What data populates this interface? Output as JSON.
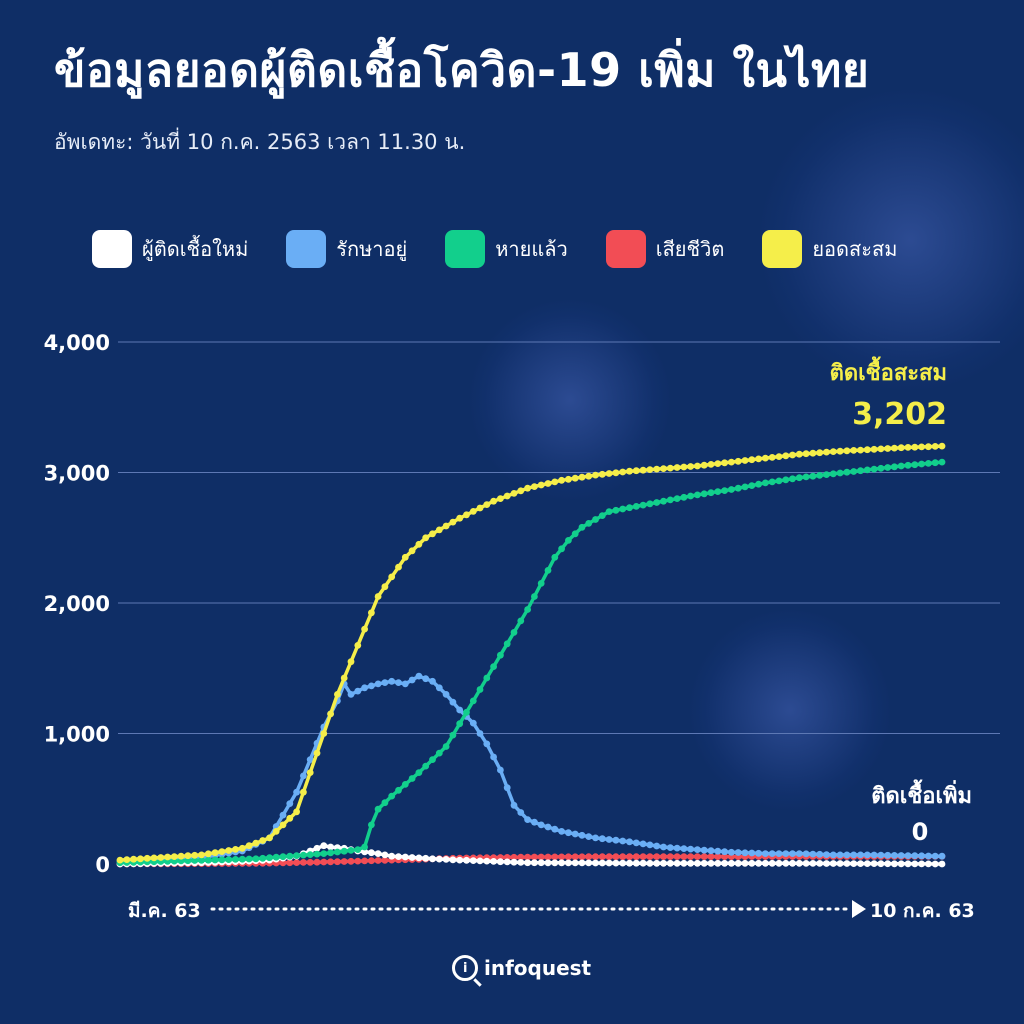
{
  "title": "ข้อมูลยอดผู้ติดเชื้อโควิด-19 เพิ่ม ในไทย",
  "subtitle": "อัพเดทะ: วันที่ 10 ก.ค. 2563 เวลา 11.30 น.",
  "legend": [
    {
      "label": "ผู้ติดเชื้อใหม่",
      "color": "#ffffff"
    },
    {
      "label": "รักษาอยู่",
      "color": "#6aaef5"
    },
    {
      "label": "หายแล้ว",
      "color": "#12cf8c"
    },
    {
      "label": "เสียชีวิต",
      "color": "#f24d55"
    },
    {
      "label": "ยอดสะสม",
      "color": "#f5ee4a"
    }
  ],
  "annotations": {
    "cumulative_label": "ติดเชื้อสะสม",
    "cumulative_value": "3,202",
    "new_label": "ติดเชื้อเพิ่ม",
    "new_value": "0"
  },
  "x_axis": {
    "start_label": "มี.ค. 63",
    "end_label": "10  ก.ค. 63"
  },
  "logo_text": "infoquest",
  "chart_data": {
    "type": "line",
    "yticks": [
      0,
      1000,
      2000,
      3000,
      4000
    ],
    "ytick_labels": [
      "0",
      "1,000",
      "2,000",
      "3,000",
      "4,000"
    ],
    "ylim": [
      0,
      4000
    ],
    "grid": true,
    "legend_position": "top",
    "x_points": 122,
    "series": [
      {
        "name": "ยอดสะสม",
        "color": "#f5ee4a",
        "knots": [
          [
            0,
            30
          ],
          [
            12,
            70
          ],
          [
            18,
            120
          ],
          [
            22,
            200
          ],
          [
            26,
            400
          ],
          [
            28,
            700
          ],
          [
            30,
            1000
          ],
          [
            32,
            1300
          ],
          [
            34,
            1550
          ],
          [
            36,
            1800
          ],
          [
            38,
            2050
          ],
          [
            40,
            2200
          ],
          [
            42,
            2350
          ],
          [
            45,
            2500
          ],
          [
            50,
            2650
          ],
          [
            55,
            2780
          ],
          [
            60,
            2880
          ],
          [
            65,
            2940
          ],
          [
            70,
            2980
          ],
          [
            75,
            3010
          ],
          [
            80,
            3030
          ],
          [
            85,
            3050
          ],
          [
            90,
            3080
          ],
          [
            95,
            3110
          ],
          [
            100,
            3140
          ],
          [
            105,
            3160
          ],
          [
            110,
            3175
          ],
          [
            115,
            3190
          ],
          [
            121,
            3202
          ]
        ]
      },
      {
        "name": "รักษาอยู่",
        "color": "#6aaef5",
        "knots": [
          [
            0,
            20
          ],
          [
            12,
            50
          ],
          [
            18,
            100
          ],
          [
            22,
            200
          ],
          [
            26,
            550
          ],
          [
            28,
            800
          ],
          [
            30,
            1050
          ],
          [
            32,
            1250
          ],
          [
            33,
            1380
          ],
          [
            34,
            1300
          ],
          [
            36,
            1350
          ],
          [
            38,
            1380
          ],
          [
            40,
            1400
          ],
          [
            42,
            1380
          ],
          [
            44,
            1440
          ],
          [
            46,
            1400
          ],
          [
            48,
            1300
          ],
          [
            50,
            1180
          ],
          [
            52,
            1080
          ],
          [
            54,
            920
          ],
          [
            56,
            720
          ],
          [
            58,
            450
          ],
          [
            60,
            340
          ],
          [
            62,
            300
          ],
          [
            65,
            250
          ],
          [
            70,
            200
          ],
          [
            75,
            170
          ],
          [
            80,
            130
          ],
          [
            85,
            110
          ],
          [
            90,
            90
          ],
          [
            95,
            80
          ],
          [
            100,
            80
          ],
          [
            105,
            70
          ],
          [
            110,
            70
          ],
          [
            115,
            65
          ],
          [
            121,
            60
          ]
        ]
      },
      {
        "name": "หายแล้ว",
        "color": "#12cf8c",
        "knots": [
          [
            0,
            10
          ],
          [
            20,
            40
          ],
          [
            30,
            80
          ],
          [
            35,
            110
          ],
          [
            36,
            130
          ],
          [
            37,
            300
          ],
          [
            38,
            420
          ],
          [
            40,
            520
          ],
          [
            44,
            700
          ],
          [
            48,
            900
          ],
          [
            52,
            1250
          ],
          [
            56,
            1600
          ],
          [
            60,
            1950
          ],
          [
            62,
            2150
          ],
          [
            64,
            2350
          ],
          [
            66,
            2480
          ],
          [
            68,
            2580
          ],
          [
            72,
            2700
          ],
          [
            76,
            2740
          ],
          [
            80,
            2780
          ],
          [
            84,
            2820
          ],
          [
            90,
            2870
          ],
          [
            95,
            2920
          ],
          [
            100,
            2960
          ],
          [
            105,
            2990
          ],
          [
            110,
            3020
          ],
          [
            115,
            3050
          ],
          [
            121,
            3080
          ]
        ]
      },
      {
        "name": "เสียชีวิต",
        "color": "#f24d55",
        "knots": [
          [
            0,
            0
          ],
          [
            20,
            5
          ],
          [
            30,
            15
          ],
          [
            40,
            30
          ],
          [
            50,
            45
          ],
          [
            60,
            53
          ],
          [
            70,
            56
          ],
          [
            90,
            57
          ],
          [
            121,
            58
          ]
        ]
      },
      {
        "name": "ผู้ติดเชื้อใหม่",
        "color": "#ffffff",
        "knots": [
          [
            0,
            0
          ],
          [
            12,
            10
          ],
          [
            18,
            20
          ],
          [
            22,
            30
          ],
          [
            26,
            60
          ],
          [
            28,
            100
          ],
          [
            30,
            140
          ],
          [
            31,
            130
          ],
          [
            33,
            120
          ],
          [
            35,
            100
          ],
          [
            38,
            80
          ],
          [
            40,
            60
          ],
          [
            43,
            50
          ],
          [
            46,
            40
          ],
          [
            50,
            30
          ],
          [
            55,
            20
          ],
          [
            60,
            10
          ],
          [
            70,
            8
          ],
          [
            80,
            5
          ],
          [
            90,
            5
          ],
          [
            100,
            5
          ],
          [
            110,
            3
          ],
          [
            121,
            0
          ]
        ]
      }
    ]
  }
}
